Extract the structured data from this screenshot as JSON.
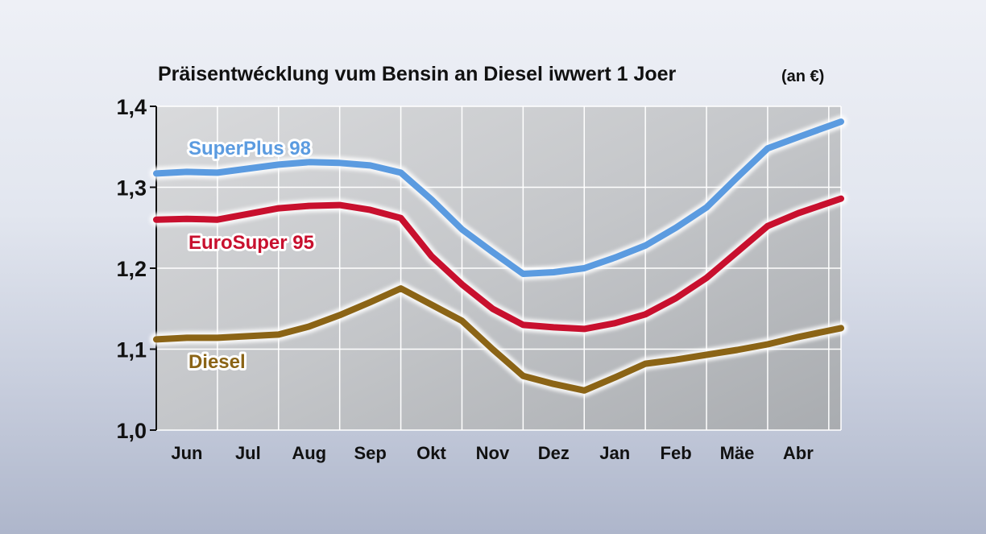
{
  "chart_data": {
    "type": "line",
    "title": "Präisentwécklung vum Bensin an Diesel iwwert 1 Joer",
    "unit": "(an €)",
    "categories": [
      "Jun",
      "Jul",
      "Aug",
      "Sep",
      "Okt",
      "Nov",
      "Dez",
      "Jan",
      "Feb",
      "Mäe",
      "Abr"
    ],
    "x": [
      0,
      0.5,
      1,
      1.5,
      2,
      2.5,
      3,
      3.5,
      4,
      4.5,
      5,
      5.5,
      6,
      6.5,
      7,
      7.5,
      8,
      8.5,
      9,
      9.5,
      10,
      10.5,
      11.2
    ],
    "ylim": [
      1.0,
      1.4
    ],
    "yticks": [
      "1,0",
      "1,1",
      "1,2",
      "1,3",
      "1,4"
    ],
    "grid": true,
    "series": [
      {
        "name": "SuperPlus 98",
        "color": "#5b9be0",
        "values": [
          1.317,
          1.319,
          1.318,
          1.323,
          1.328,
          1.331,
          1.33,
          1.327,
          1.318,
          1.285,
          1.248,
          1.22,
          1.193,
          1.195,
          1.2,
          1.213,
          1.228,
          1.25,
          1.275,
          1.312,
          1.348,
          1.362,
          1.381
        ]
      },
      {
        "name": "EuroSuper 95",
        "color": "#c8102e",
        "values": [
          1.26,
          1.261,
          1.26,
          1.267,
          1.274,
          1.277,
          1.278,
          1.272,
          1.262,
          1.215,
          1.18,
          1.15,
          1.13,
          1.127,
          1.125,
          1.132,
          1.143,
          1.163,
          1.188,
          1.22,
          1.252,
          1.268,
          1.286
        ]
      },
      {
        "name": "Diesel",
        "color": "#8b6416",
        "values": [
          1.112,
          1.114,
          1.114,
          1.116,
          1.118,
          1.128,
          1.142,
          1.158,
          1.175,
          1.155,
          1.135,
          1.1,
          1.067,
          1.057,
          1.049,
          1.065,
          1.082,
          1.087,
          1.093,
          1.099,
          1.106,
          1.115,
          1.126
        ]
      }
    ]
  }
}
